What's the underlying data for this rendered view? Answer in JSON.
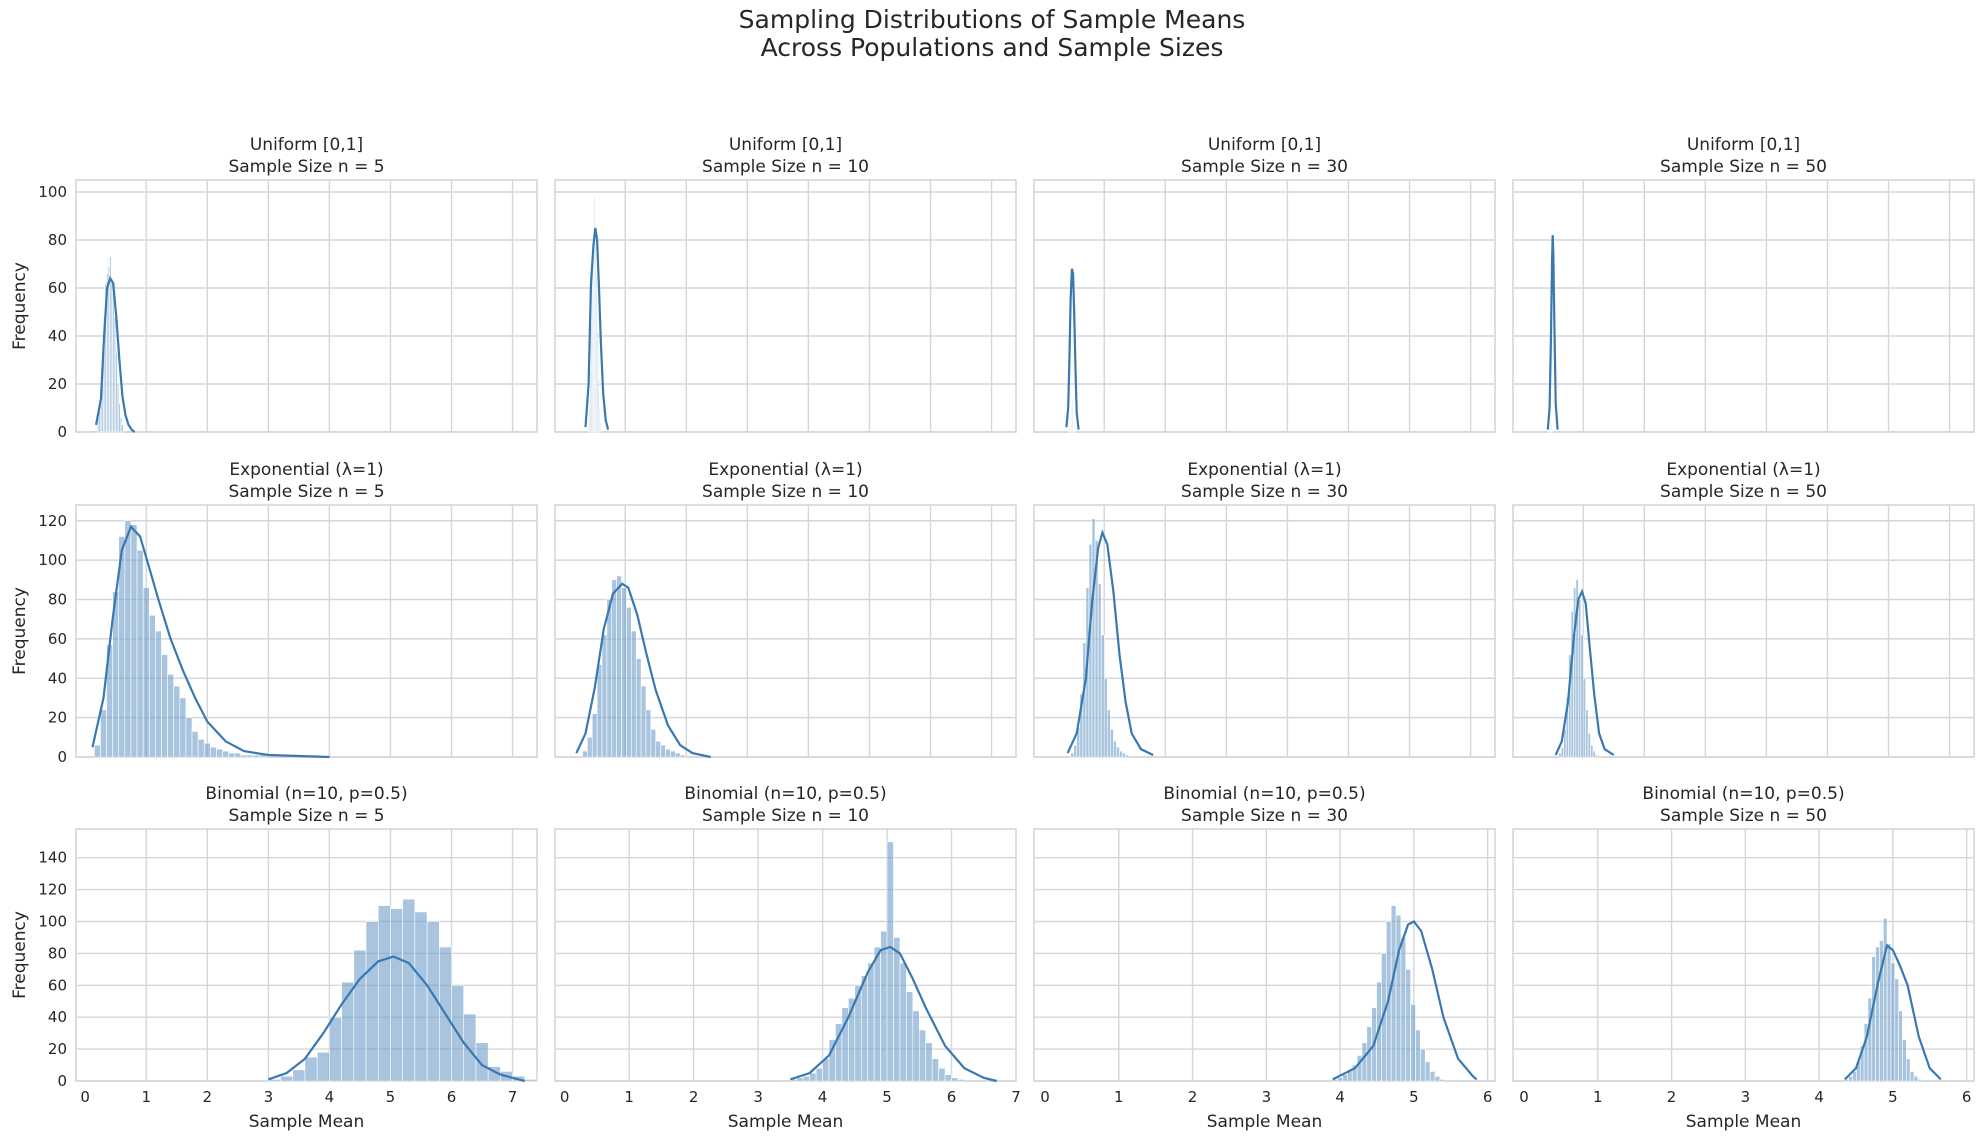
{
  "suptitle": {
    "line1": "Sampling Distributions of Sample Means",
    "line2": "Across Populations and Sample Sizes"
  },
  "chart_data": [
    {
      "type": "histogram",
      "population": "Uniform [0,1]",
      "sample_size_label": "Sample Size n = 5",
      "xlabel": "",
      "ylabel": "Frequency",
      "xlim": [
        -0.15,
        7.4
      ],
      "ylim": [
        0,
        105
      ],
      "xticks": [],
      "yticks": [
        0,
        20,
        40,
        60,
        80,
        100
      ],
      "grid": true,
      "bins": {
        "start": 0.2,
        "width": 0.025,
        "counts": [
          6,
          13,
          20,
          33,
          48,
          62,
          66,
          69,
          73,
          64,
          60,
          48,
          33,
          20,
          12,
          6,
          3
        ]
      },
      "kde": {
        "x": [
          0.18,
          0.26,
          0.31,
          0.36,
          0.41,
          0.46,
          0.51,
          0.56,
          0.61,
          0.66,
          0.71,
          0.76,
          0.81
        ],
        "y": [
          3,
          14,
          40,
          60,
          64,
          62,
          48,
          30,
          15,
          7,
          3,
          1,
          0
        ]
      }
    },
    {
      "type": "histogram",
      "population": "Uniform [0,1]",
      "sample_size_label": "Sample Size n = 10",
      "xlabel": "",
      "ylabel": "",
      "xlim": [
        -0.15,
        7.4
      ],
      "ylim": [
        0,
        105
      ],
      "xticks": [],
      "yticks": [
        0,
        20,
        40,
        60,
        80,
        100
      ],
      "grid": true,
      "bins": {
        "start": 0.4,
        "width": 0.015,
        "counts": [
          5,
          12,
          25,
          45,
          68,
          83,
          98,
          86,
          65,
          42,
          22,
          10,
          4
        ]
      },
      "kde": {
        "x": [
          0.35,
          0.4,
          0.44,
          0.48,
          0.51,
          0.54,
          0.57,
          0.6,
          0.64,
          0.68,
          0.72
        ],
        "y": [
          2,
          20,
          62,
          78,
          85,
          80,
          60,
          38,
          16,
          5,
          1
        ]
      }
    },
    {
      "type": "histogram",
      "population": "Uniform [0,1]",
      "sample_size_label": "Sample Size n = 30",
      "xlabel": "",
      "ylabel": "",
      "xlim": [
        -0.15,
        7.4
      ],
      "ylim": [
        0,
        105
      ],
      "xticks": [],
      "yticks": [
        0,
        20,
        40,
        60,
        80,
        100
      ],
      "grid": true,
      "bins": {
        "start": 0.42,
        "width": 0.012,
        "counts": [
          1,
          3,
          6,
          10,
          14,
          12,
          8,
          4,
          2
        ]
      },
      "kde": {
        "x": [
          0.38,
          0.41,
          0.43,
          0.45,
          0.47,
          0.49,
          0.51,
          0.53,
          0.55,
          0.58
        ],
        "y": [
          2,
          10,
          30,
          55,
          68,
          66,
          48,
          26,
          8,
          1
        ]
      }
    },
    {
      "type": "histogram",
      "population": "Uniform [0,1]",
      "sample_size_label": "Sample Size n = 50",
      "xlabel": "",
      "ylabel": "",
      "xlim": [
        -0.15,
        7.4
      ],
      "ylim": [
        0,
        105
      ],
      "xticks": [],
      "yticks": [
        0,
        20,
        40,
        60,
        80,
        100
      ],
      "grid": true,
      "bins": {
        "start": 0.43,
        "width": 0.01,
        "counts": [
          1,
          2,
          4,
          6,
          5,
          3,
          1
        ]
      },
      "kde": {
        "x": [
          0.42,
          0.45,
          0.47,
          0.49,
          0.5,
          0.51,
          0.53,
          0.55,
          0.58
        ],
        "y": [
          1,
          10,
          38,
          72,
          82,
          75,
          42,
          12,
          1
        ]
      }
    },
    {
      "type": "histogram",
      "population": "Exponential (λ=1)",
      "sample_size_label": "Sample Size n = 5",
      "xlabel": "",
      "ylabel": "Frequency",
      "xlim": [
        -0.15,
        7.4
      ],
      "ylim": [
        0,
        128
      ],
      "xticks": [],
      "yticks": [
        0,
        20,
        40,
        60,
        80,
        100,
        120
      ],
      "grid": true,
      "bins": {
        "start": 0.15,
        "width": 0.1,
        "counts": [
          6,
          24,
          57,
          84,
          112,
          120,
          118,
          105,
          86,
          72,
          64,
          52,
          42,
          36,
          30,
          20,
          13,
          9,
          7,
          5,
          4,
          3,
          2,
          2,
          1,
          1,
          1,
          1
        ]
      },
      "kde": {
        "x": [
          0.12,
          0.3,
          0.45,
          0.6,
          0.75,
          0.9,
          1.05,
          1.2,
          1.4,
          1.6,
          1.8,
          2.0,
          2.3,
          2.6,
          3.0,
          3.5,
          4.0
        ],
        "y": [
          5,
          30,
          70,
          105,
          117,
          112,
          96,
          80,
          60,
          44,
          30,
          18,
          8,
          3,
          1,
          0.5,
          0
        ]
      }
    },
    {
      "type": "histogram",
      "population": "Exponential (λ=1)",
      "sample_size_label": "Sample Size n = 10",
      "xlabel": "",
      "ylabel": "",
      "xlim": [
        -0.15,
        7.4
      ],
      "ylim": [
        0,
        128
      ],
      "xticks": [],
      "yticks": [
        0,
        20,
        40,
        60,
        80,
        100,
        120
      ],
      "grid": true,
      "bins": {
        "start": 0.3,
        "width": 0.08,
        "counts": [
          3,
          10,
          22,
          47,
          62,
          80,
          90,
          92,
          86,
          76,
          64,
          50,
          36,
          24,
          14,
          8,
          6,
          4,
          3,
          2,
          1
        ]
      },
      "kde": {
        "x": [
          0.2,
          0.35,
          0.5,
          0.65,
          0.8,
          0.95,
          1.05,
          1.2,
          1.35,
          1.5,
          1.7,
          1.9,
          2.1,
          2.4
        ],
        "y": [
          2,
          12,
          35,
          65,
          83,
          88,
          86,
          72,
          52,
          34,
          16,
          6,
          2,
          0
        ]
      }
    },
    {
      "type": "histogram",
      "population": "Exponential (λ=1)",
      "sample_size_label": "Sample Size n = 30",
      "xlabel": "",
      "ylabel": "",
      "xlim": [
        -0.15,
        7.4
      ],
      "ylim": [
        0,
        128
      ],
      "xticks": [],
      "yticks": [
        0,
        20,
        40,
        60,
        80,
        100,
        120
      ],
      "grid": true,
      "bins": {
        "start": 0.45,
        "width": 0.05,
        "counts": [
          2,
          6,
          15,
          32,
          58,
          86,
          108,
          121,
          110,
          88,
          62,
          40,
          24,
          14,
          8,
          5,
          3,
          2,
          1
        ]
      },
      "kde": {
        "x": [
          0.4,
          0.55,
          0.7,
          0.8,
          0.9,
          0.97,
          1.05,
          1.15,
          1.25,
          1.35,
          1.45,
          1.6,
          1.8
        ],
        "y": [
          2,
          12,
          40,
          78,
          106,
          114,
          108,
          84,
          52,
          28,
          12,
          4,
          1
        ]
      }
    },
    {
      "type": "histogram",
      "population": "Exponential (λ=1)",
      "sample_size_label": "Sample Size n = 50",
      "xlabel": "",
      "ylabel": "",
      "xlim": [
        -0.15,
        7.4
      ],
      "ylim": [
        0,
        128
      ],
      "xticks": [],
      "yticks": [
        0,
        20,
        40,
        60,
        80,
        100,
        120
      ],
      "grid": true,
      "bins": {
        "start": 0.6,
        "width": 0.04,
        "counts": [
          2,
          5,
          14,
          30,
          52,
          74,
          86,
          90,
          80,
          62,
          40,
          24,
          12,
          6,
          3,
          1
        ]
      },
      "kde": {
        "x": [
          0.55,
          0.65,
          0.75,
          0.85,
          0.92,
          0.98,
          1.04,
          1.1,
          1.18,
          1.26,
          1.35,
          1.5
        ],
        "y": [
          1,
          8,
          28,
          62,
          80,
          84,
          78,
          58,
          32,
          12,
          4,
          1
        ]
      }
    },
    {
      "type": "histogram",
      "population": "Binomial (n=10, p=0.5)",
      "sample_size_label": "Sample Size n = 5",
      "xlabel": "Sample Mean",
      "ylabel": "Frequency",
      "xlim": [
        -0.15,
        7.4
      ],
      "ylim": [
        0,
        158
      ],
      "xticks": [
        0,
        1,
        2,
        3,
        4,
        5,
        6,
        7
      ],
      "yticks": [
        0,
        20,
        40,
        60,
        80,
        100,
        120,
        140
      ],
      "grid": true,
      "bins": {
        "start": 3.0,
        "width": 0.2,
        "counts": [
          1,
          3,
          7,
          15,
          18,
          40,
          62,
          82,
          100,
          110,
          108,
          114,
          106,
          100,
          84,
          60,
          42,
          24,
          9,
          6,
          3,
          1
        ]
      },
      "kde": {
        "x": [
          3.0,
          3.3,
          3.6,
          3.9,
          4.2,
          4.5,
          4.8,
          5.05,
          5.3,
          5.6,
          5.9,
          6.2,
          6.5,
          6.8,
          7.1,
          7.2
        ],
        "y": [
          1,
          5,
          14,
          30,
          48,
          64,
          75,
          78,
          74,
          60,
          42,
          24,
          10,
          4,
          1,
          0
        ]
      }
    },
    {
      "type": "histogram",
      "population": "Binomial (n=10, p=0.5)",
      "sample_size_label": "Sample Size n = 10",
      "xlabel": "Sample Mean",
      "ylabel": "",
      "xlim": [
        -0.15,
        7.0
      ],
      "ylim": [
        0,
        158
      ],
      "xticks": [
        0,
        1,
        2,
        3,
        4,
        5,
        6,
        7
      ],
      "yticks": [
        0,
        20,
        40,
        60,
        80,
        100,
        120,
        140
      ],
      "grid": true,
      "bins": {
        "start": 3.5,
        "width": 0.1,
        "counts": [
          1,
          2,
          3,
          5,
          8,
          14,
          26,
          36,
          46,
          52,
          60,
          66,
          74,
          84,
          94,
          150,
          90,
          74,
          56,
          44,
          32,
          24,
          14,
          8,
          4,
          2,
          1
        ]
      },
      "kde": {
        "x": [
          3.5,
          3.8,
          4.1,
          4.4,
          4.7,
          4.9,
          5.05,
          5.2,
          5.4,
          5.6,
          5.9,
          6.2,
          6.5,
          6.7
        ],
        "y": [
          1,
          5,
          16,
          40,
          68,
          82,
          84,
          80,
          64,
          46,
          22,
          8,
          2,
          0
        ]
      }
    },
    {
      "type": "histogram",
      "population": "Binomial (n=10, p=0.5)",
      "sample_size_label": "Sample Size n = 30",
      "xlabel": "Sample Mean",
      "ylabel": "",
      "xlim": [
        -0.15,
        6.1
      ],
      "ylim": [
        0,
        158
      ],
      "xticks": [
        0,
        1,
        2,
        3,
        4,
        5,
        6
      ],
      "yticks": [
        0,
        20,
        40,
        60,
        80,
        100,
        120,
        140
      ],
      "grid": true,
      "bins": {
        "start": 3.9,
        "width": 0.066,
        "counts": [
          1,
          2,
          4,
          6,
          10,
          16,
          24,
          34,
          46,
          62,
          80,
          100,
          110,
          104,
          90,
          70,
          48,
          32,
          20,
          12,
          6,
          3,
          1
        ]
      },
      "kde": {
        "x": [
          3.9,
          4.2,
          4.45,
          4.65,
          4.8,
          4.92,
          5.0,
          5.1,
          5.25,
          5.4,
          5.6,
          5.8,
          5.85
        ],
        "y": [
          1,
          8,
          22,
          50,
          82,
          98,
          100,
          94,
          70,
          40,
          14,
          3,
          1
        ]
      }
    },
    {
      "type": "histogram",
      "population": "Binomial (n=10, p=0.5)",
      "sample_size_label": "Sample Size n = 50",
      "xlabel": "Sample Mean",
      "ylabel": "",
      "xlim": [
        -0.15,
        6.1
      ],
      "ylim": [
        0,
        158
      ],
      "xticks": [
        0,
        1,
        2,
        3,
        4,
        5,
        6
      ],
      "yticks": [
        0,
        20,
        40,
        60,
        80,
        100,
        120,
        140
      ],
      "grid": true,
      "bins": {
        "start": 4.35,
        "width": 0.052,
        "counts": [
          1,
          3,
          6,
          12,
          22,
          36,
          52,
          78,
          84,
          88,
          102,
          86,
          74,
          64,
          44,
          26,
          14,
          6,
          3,
          1
        ]
      },
      "kde": {
        "x": [
          4.35,
          4.5,
          4.65,
          4.8,
          4.92,
          5.0,
          5.1,
          5.2,
          5.35,
          5.5,
          5.65
        ],
        "y": [
          1,
          8,
          28,
          62,
          85,
          82,
          72,
          60,
          28,
          8,
          1
        ]
      }
    }
  ]
}
